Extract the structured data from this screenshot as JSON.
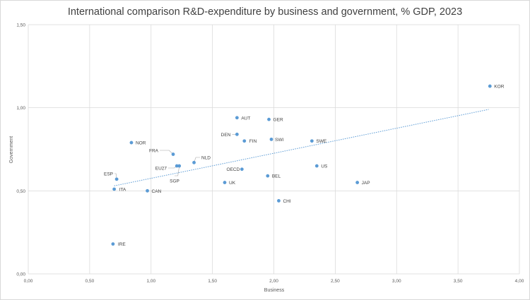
{
  "chart_data": {
    "type": "scatter",
    "title": "International comparison R&D-expenditure by business and government, % GDP, 2023",
    "xlabel": "Business",
    "ylabel": "Government",
    "xlim": [
      0,
      4
    ],
    "ylim": [
      0,
      1.5
    ],
    "x_ticks": [
      "0,00",
      "0,50",
      "1,00",
      "1,50",
      "2,00",
      "2,50",
      "3,00",
      "3,50",
      "4,00"
    ],
    "y_ticks": [
      "0,00",
      "0,50",
      "1,00",
      "1,50"
    ],
    "grid": true,
    "legend": "none",
    "marker_color": "#5b9bd5",
    "trendline": {
      "style": "dotted linear",
      "x": [
        0.7,
        3.75
      ],
      "y": [
        0.53,
        0.99
      ]
    },
    "points": [
      {
        "label": "KOR",
        "x": 3.76,
        "y": 1.13
      },
      {
        "label": "AUT",
        "x": 1.7,
        "y": 0.94
      },
      {
        "label": "GER",
        "x": 1.96,
        "y": 0.93
      },
      {
        "label": "DEN",
        "x": 1.7,
        "y": 0.84
      },
      {
        "label": "FIN",
        "x": 1.76,
        "y": 0.8
      },
      {
        "label": "SWI",
        "x": 1.98,
        "y": 0.81
      },
      {
        "label": "SWE",
        "x": 2.31,
        "y": 0.8
      },
      {
        "label": "NOR",
        "x": 0.84,
        "y": 0.79
      },
      {
        "label": "FRA",
        "x": 1.18,
        "y": 0.72
      },
      {
        "label": "NLD",
        "x": 1.35,
        "y": 0.67
      },
      {
        "label": "EU27",
        "x": 1.21,
        "y": 0.65
      },
      {
        "label": "SGP",
        "x": 1.23,
        "y": 0.65
      },
      {
        "label": "OECD",
        "x": 1.74,
        "y": 0.63
      },
      {
        "label": "US",
        "x": 2.35,
        "y": 0.65
      },
      {
        "label": "BEL",
        "x": 1.95,
        "y": 0.59
      },
      {
        "label": "ESP",
        "x": 0.72,
        "y": 0.57
      },
      {
        "label": "UK",
        "x": 1.6,
        "y": 0.55
      },
      {
        "label": "JAP",
        "x": 2.68,
        "y": 0.55
      },
      {
        "label": "ITA",
        "x": 0.7,
        "y": 0.51
      },
      {
        "label": "CAN",
        "x": 0.97,
        "y": 0.5
      },
      {
        "label": "CHI",
        "x": 2.04,
        "y": 0.44
      },
      {
        "label": "IRE",
        "x": 0.69,
        "y": 0.18
      }
    ]
  }
}
